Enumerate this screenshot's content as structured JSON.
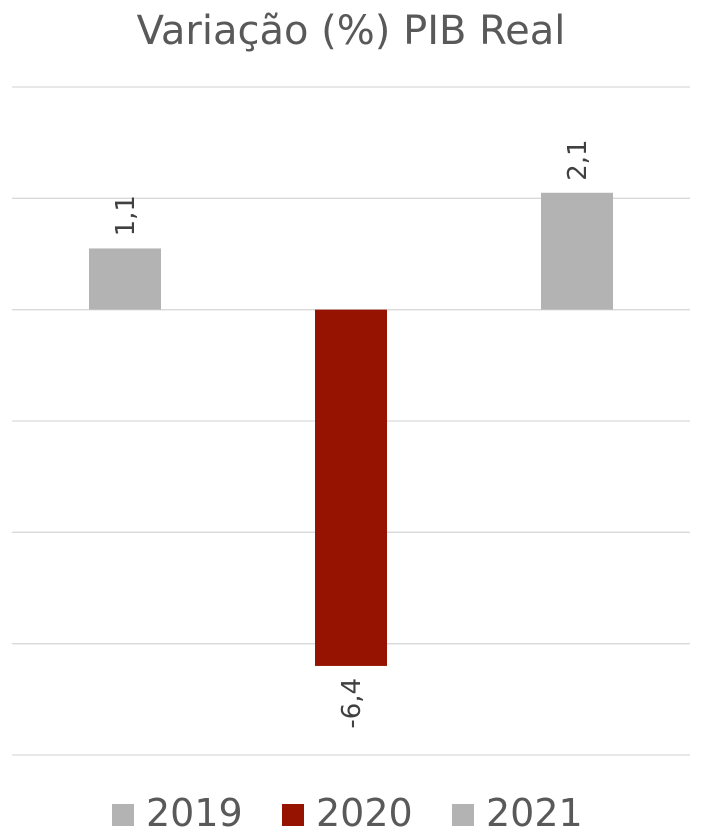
{
  "chart_data": {
    "type": "bar",
    "title": "Variação (%) PIB Real",
    "categories": [
      "2019",
      "2020",
      "2021"
    ],
    "values": [
      1.1,
      -6.4,
      2.1
    ],
    "data_labels": [
      "1,1",
      "-6,4",
      "2,1"
    ],
    "series": [
      {
        "name": "2019",
        "values": [
          1.1,
          null,
          null
        ],
        "color": "#B3B3B3"
      },
      {
        "name": "2020",
        "values": [
          null,
          -6.4,
          null
        ],
        "color": "#951300"
      },
      {
        "name": "2021",
        "values": [
          null,
          null,
          2.1
        ],
        "color": "#B3B3B3"
      }
    ],
    "ylim": [
      -8,
      4
    ],
    "ytick_step": 2,
    "grid": true,
    "legend_position": "bottom",
    "xlabel": "",
    "ylabel": ""
  }
}
